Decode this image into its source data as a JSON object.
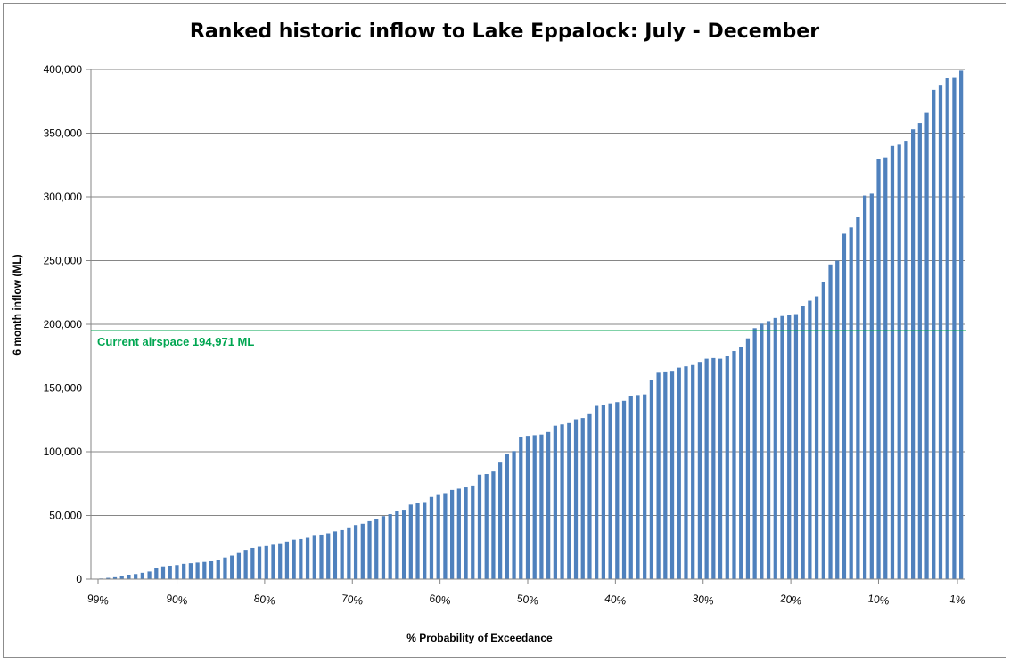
{
  "chart_data": {
    "type": "bar",
    "title": "Ranked historic inflow to Lake Eppalock: July - December",
    "xlabel": "% Probability of Exceedance",
    "ylabel": "6 month inflow (ML)",
    "ylim": [
      0,
      400000
    ],
    "y_ticks": [
      "0",
      "50,000",
      "100,000",
      "150,000",
      "200,000",
      "250,000",
      "300,000",
      "350,000",
      "400,000"
    ],
    "y_tick_values": [
      0,
      50000,
      100000,
      150000,
      200000,
      250000,
      300000,
      350000,
      400000
    ],
    "x_tick_labels": [
      "99%",
      "90%",
      "80%",
      "70%",
      "60%",
      "50%",
      "40%",
      "30%",
      "20%",
      "10%",
      "1%"
    ],
    "x_tick_values": [
      99,
      90,
      80,
      70,
      60,
      50,
      40,
      30,
      20,
      10,
      1
    ],
    "grid": true,
    "legend": "none",
    "bar_color": "#4f81bd",
    "reference_line": {
      "label": "Current airspace 194,971 ML",
      "value": 194971,
      "color": "#00a651"
    },
    "values": [
      0,
      500,
      1000,
      1500,
      2500,
      3500,
      4000,
      5000,
      6000,
      8500,
      10000,
      10500,
      11000,
      12000,
      12500,
      13000,
      13500,
      14000,
      15000,
      17000,
      18500,
      20500,
      23000,
      24500,
      25500,
      26000,
      27000,
      27500,
      29500,
      31000,
      31500,
      32500,
      34000,
      35000,
      36000,
      37500,
      38500,
      40000,
      42500,
      43500,
      45500,
      47500,
      49500,
      51000,
      53500,
      54500,
      58500,
      59500,
      60500,
      64500,
      66000,
      67500,
      70000,
      71000,
      72000,
      73500,
      82000,
      82500,
      84500,
      91500,
      98000,
      100500,
      111500,
      112500,
      113000,
      113500,
      115500,
      120500,
      121500,
      122500,
      125500,
      126500,
      129500,
      136000,
      137000,
      138000,
      139000,
      140000,
      144000,
      144500,
      145000,
      156000,
      162000,
      163000,
      163500,
      166000,
      167000,
      168000,
      170500,
      173000,
      173500,
      173000,
      175000,
      179000,
      182000,
      189000,
      197000,
      200500,
      202500,
      205000,
      206500,
      207500,
      208000,
      214000,
      218500,
      222000,
      233000,
      247000,
      250000,
      271000,
      276000,
      284000,
      301000,
      302500,
      330000,
      331000,
      340000,
      341000,
      344000,
      353000,
      358000,
      366000,
      384000,
      388000,
      393500,
      394000,
      399000
    ]
  }
}
